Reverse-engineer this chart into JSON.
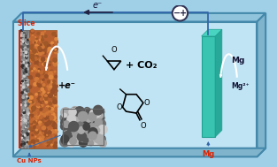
{
  "bg_color": "#a0d0e8",
  "box_front_color": "#c0e4f4",
  "box_top_color": "#90c4dc",
  "box_right_color": "#80b4cc",
  "box_edge_color": "#4488aa",
  "cathode_brown": "#b86030",
  "cathode_gray": "#909090",
  "anode_teal": "#38c4b0",
  "anode_teal_right": "#28a898",
  "anode_teal_top": "#48d4c0",
  "wire_color": "#3366aa",
  "arrow_color": "#222244",
  "text_color_red": "#dd2200",
  "text_color_dark": "#111133",
  "text_slice": "Slice",
  "text_cunps": "Cu NPs",
  "text_eminus": "e⁻",
  "text_eplus": "+e⁻",
  "text_plus_CO2": "+ CO₂",
  "text_mg": "Mg",
  "text_mg2plus": "Mg²⁺",
  "text_mg_bottom": "Mg",
  "figw": 3.13,
  "figh": 1.89,
  "dpi": 100
}
